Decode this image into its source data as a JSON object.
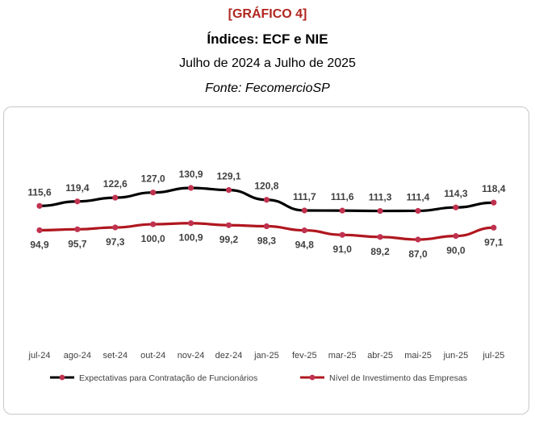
{
  "header": {
    "tag": "[GRÁFICO 4]",
    "title": "Índices: ECF e NIE",
    "subtitle": "Julho de 2024 a Julho de 2025",
    "source": "Fonte: FecomercioSP"
  },
  "chart_data": {
    "type": "line",
    "categories": [
      "jul-24",
      "ago-24",
      "set-24",
      "out-24",
      "nov-24",
      "dez-24",
      "jan-25",
      "fev-25",
      "mar-25",
      "abr-25",
      "mai-25",
      "jun-25",
      "jul-25"
    ],
    "series": [
      {
        "name": "Expectativas para Contratação de Funcionários",
        "color": "#000000",
        "values": [
          115.6,
          119.4,
          122.6,
          127.0,
          130.9,
          129.1,
          120.8,
          111.7,
          111.6,
          111.3,
          111.4,
          114.3,
          118.4
        ],
        "labels": [
          "115,6",
          "119,4",
          "122,6",
          "127,0",
          "130,9",
          "129,1",
          "120,8",
          "111,7",
          "111,6",
          "111,3",
          "111,4",
          "114,3",
          "118,4"
        ],
        "label_position": "above"
      },
      {
        "name": "Nível de Investimento das Empresas",
        "color": "#b0171f",
        "values": [
          94.9,
          95.7,
          97.3,
          100.0,
          100.9,
          99.2,
          98.3,
          94.8,
          91.0,
          89.2,
          87.0,
          90.0,
          97.1
        ],
        "labels": [
          "94,9",
          "95,7",
          "97,3",
          "100,0",
          "100,9",
          "99,2",
          "98,3",
          "94,8",
          "91,0",
          "89,2",
          "87,0",
          "90,0",
          "97,1"
        ],
        "label_position": "below"
      }
    ],
    "marker_color": "#c0324f",
    "grid": false,
    "legend_position": "bottom"
  }
}
